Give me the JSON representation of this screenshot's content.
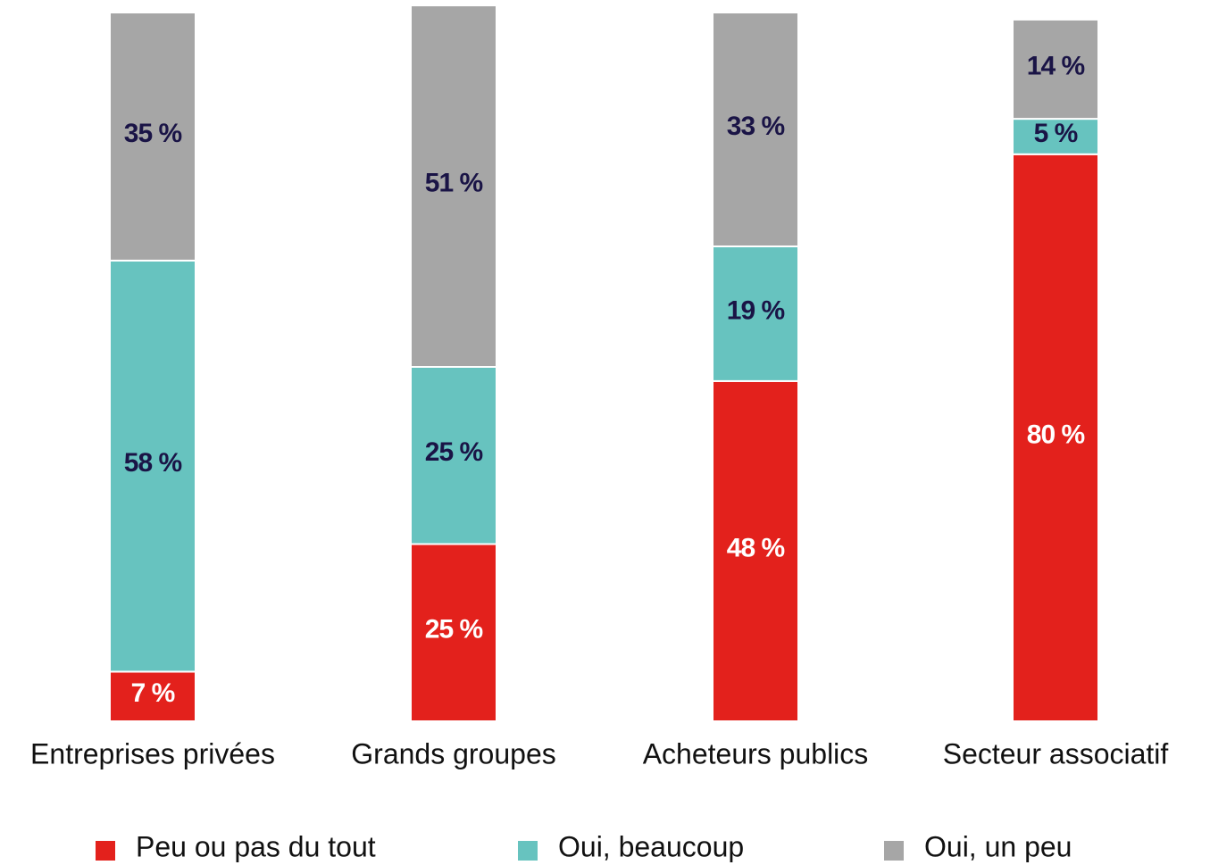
{
  "chart_data": {
    "type": "stacked_bar",
    "categories": [
      "Entreprises privées",
      "Grands groupes",
      "Acheteurs publics",
      "Secteur associatif"
    ],
    "series": [
      {
        "name": "Peu ou pas du tout",
        "color": "#e3211c",
        "values": [
          7,
          25,
          48,
          80
        ],
        "value_labels": [
          "7 %",
          "25 %",
          "48 %",
          "80 %"
        ]
      },
      {
        "name": "Oui, beaucoup",
        "color": "#67c3bf",
        "values": [
          58,
          25,
          19,
          5
        ],
        "value_labels": [
          "58 %",
          "25 %",
          "19 %",
          "5 %"
        ]
      },
      {
        "name": "Oui, un peu",
        "color": "#a6a6a6",
        "values": [
          35,
          51,
          33,
          14
        ],
        "value_labels": [
          "35 %",
          "51 %",
          "33 %",
          "14 %"
        ]
      }
    ]
  }
}
